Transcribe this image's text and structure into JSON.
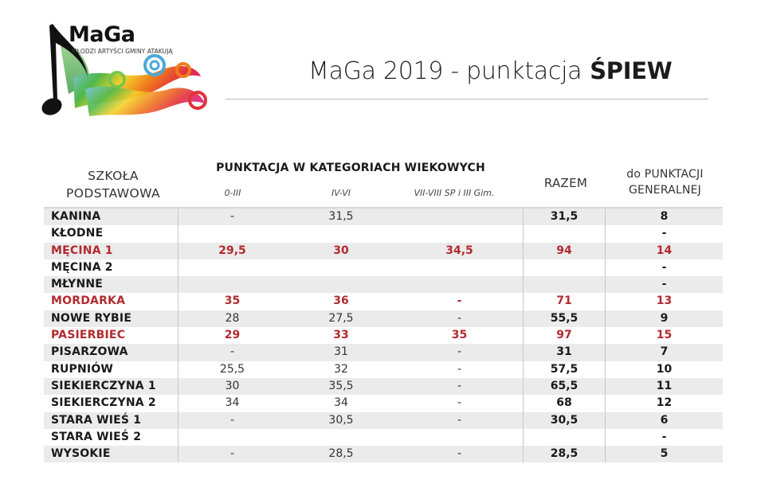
{
  "logo": {
    "title": "MaGa",
    "subtitle": "MŁODZI ARTYŚCI GMINY ATAKUJĄ",
    "icon": "music-note-rainbow-swirl-logo"
  },
  "header": {
    "title": "MaGa 2019 - punktacja",
    "category": "ŚPIEW"
  },
  "columns": {
    "school": [
      "SZKOŁA",
      "PODSTAWOWA"
    ],
    "group_label": "PUNKTACJA W KATEGORIACH WIEKOWYCH",
    "age_categories": [
      "0-III",
      "IV-VI",
      "VII-VIII SP i III Gim."
    ],
    "total": "RAZEM",
    "general": [
      "do PUNKTACJI",
      "GENERALNEJ"
    ]
  },
  "colors": {
    "highlight": "#b22a2f",
    "row_alt": "#ebebeb",
    "divider": "#c8c8c8"
  },
  "rows": [
    {
      "school": "KANINA",
      "a": "-",
      "b": "31,5",
      "c": "",
      "total": "31,5",
      "general": "8",
      "highlight": false
    },
    {
      "school": "KŁODNE",
      "a": "",
      "b": "",
      "c": "",
      "total": "",
      "general": "-",
      "highlight": false
    },
    {
      "school": "MĘCINA 1",
      "a": "29,5",
      "b": "30",
      "c": "34,5",
      "total": "94",
      "general": "14",
      "highlight": true
    },
    {
      "school": "MĘCINA 2",
      "a": "",
      "b": "",
      "c": "",
      "total": "",
      "general": "-",
      "highlight": false
    },
    {
      "school": "MŁYNNE",
      "a": "",
      "b": "",
      "c": "",
      "total": "",
      "general": "-",
      "highlight": false
    },
    {
      "school": "MORDARKA",
      "a": "35",
      "b": "36",
      "c": "-",
      "total": "71",
      "general": "13",
      "highlight": true
    },
    {
      "school": "NOWE RYBIE",
      "a": "28",
      "b": "27,5",
      "c": "-",
      "total": "55,5",
      "general": "9",
      "highlight": false
    },
    {
      "school": "PASIERBIEC",
      "a": "29",
      "b": "33",
      "c": "35",
      "total": "97",
      "general": "15",
      "highlight": true
    },
    {
      "school": "PISARZOWA",
      "a": "-",
      "b": "31",
      "c": "-",
      "total": "31",
      "general": "7",
      "highlight": false
    },
    {
      "school": "RUPNIÓW",
      "a": "25,5",
      "b": "32",
      "c": "-",
      "total": "57,5",
      "general": "10",
      "highlight": false
    },
    {
      "school": "SIEKIERCZYNA 1",
      "a": "30",
      "b": "35,5",
      "c": "-",
      "total": "65,5",
      "general": "11",
      "highlight": false
    },
    {
      "school": "SIEKIERCZYNA 2",
      "a": "34",
      "b": "34",
      "c": "-",
      "total": "68",
      "general": "12",
      "highlight": false
    },
    {
      "school": "STARA WIEŚ 1",
      "a": "-",
      "b": "30,5",
      "c": "-",
      "total": "30,5",
      "general": "6",
      "highlight": false
    },
    {
      "school": "STARA WIEŚ 2",
      "a": "",
      "b": "",
      "c": "",
      "total": "",
      "general": "-",
      "highlight": false
    },
    {
      "school": "WYSOKIE",
      "a": "-",
      "b": "28,5",
      "c": "-",
      "total": "28,5",
      "general": "5",
      "highlight": false
    }
  ]
}
